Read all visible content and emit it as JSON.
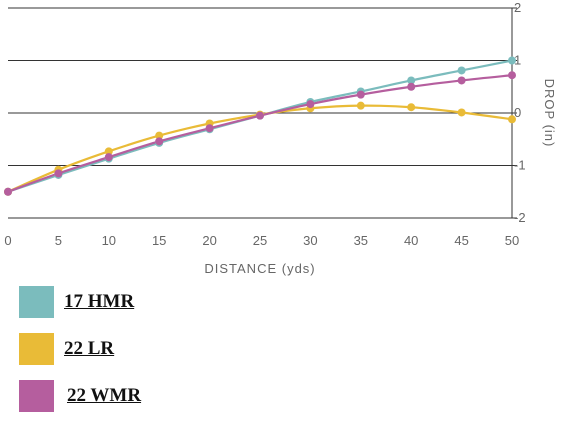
{
  "chart_data": {
    "type": "line",
    "xlabel": "DISTANCE (yds)",
    "ylabel": "DROP (in)",
    "x": [
      0,
      5,
      10,
      15,
      20,
      25,
      30,
      35,
      40,
      45,
      50
    ],
    "xlim": [
      0,
      50
    ],
    "ylim": [
      -2,
      2
    ],
    "x_ticks": [
      "0",
      "5",
      "10",
      "15",
      "20",
      "25",
      "30",
      "35",
      "40",
      "45",
      "50"
    ],
    "y_ticks": [
      "2",
      "1",
      "0",
      "-1",
      "-2"
    ],
    "y_axis_side": "right",
    "grid": true,
    "legend_position": "bottom-left",
    "series": [
      {
        "name": "17 HMR",
        "color": "#7bbcbd",
        "values": [
          -1.5,
          -1.18,
          -0.87,
          -0.57,
          -0.31,
          -0.05,
          0.21,
          0.41,
          0.62,
          0.81,
          1.0
        ]
      },
      {
        "name": "22 LR",
        "color": "#e9bb37",
        "values": [
          -1.5,
          -1.08,
          -0.73,
          -0.43,
          -0.2,
          -0.03,
          0.09,
          0.14,
          0.11,
          0.01,
          -0.12
        ]
      },
      {
        "name": "22 WMR",
        "color": "#b55e9e",
        "values": [
          -1.5,
          -1.15,
          -0.84,
          -0.54,
          -0.29,
          -0.05,
          0.17,
          0.35,
          0.5,
          0.62,
          0.72
        ]
      }
    ]
  }
}
